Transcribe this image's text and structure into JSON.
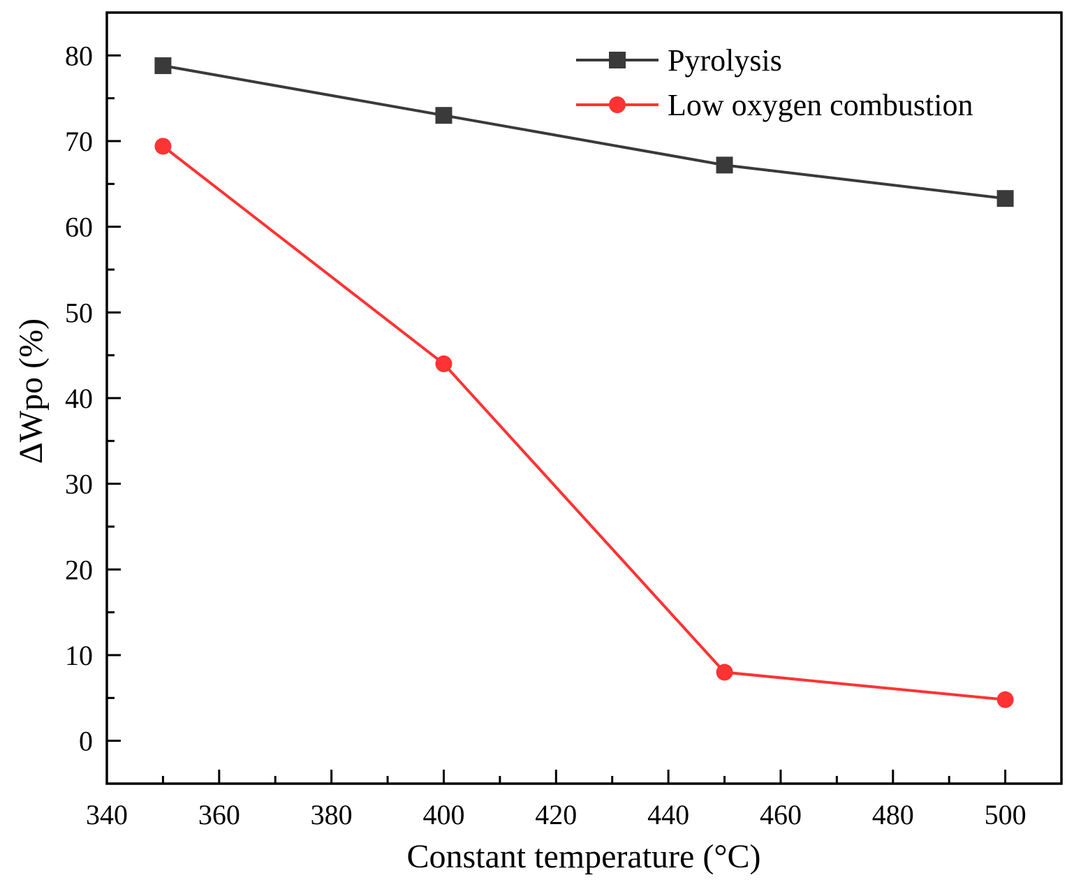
{
  "chart_data": {
    "type": "line",
    "title": "",
    "xlabel": "Constant temperature (°C)",
    "ylabel": "ΔWpo (%)",
    "xlim": [
      340,
      510
    ],
    "ylim": [
      -5,
      85
    ],
    "xticks": [
      340,
      360,
      380,
      400,
      420,
      440,
      460,
      480,
      500
    ],
    "yticks": [
      0,
      10,
      20,
      30,
      40,
      50,
      60,
      70,
      80
    ],
    "grid": false,
    "legend_position": "top-right",
    "series": [
      {
        "name": "Pyrolysis",
        "color": "#3a3a3a",
        "marker": "square",
        "x": [
          350,
          400,
          450,
          500
        ],
        "y": [
          78.8,
          73.0,
          67.2,
          63.3
        ]
      },
      {
        "name": "Low oxygen combustion",
        "color": "#ff3333",
        "marker": "circle",
        "x": [
          350,
          400,
          450,
          500
        ],
        "y": [
          69.4,
          44.0,
          8.0,
          4.8
        ]
      }
    ]
  }
}
